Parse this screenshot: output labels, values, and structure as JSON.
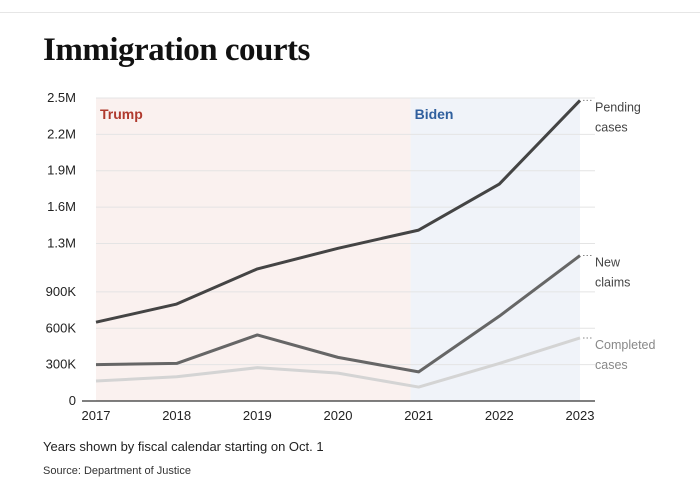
{
  "chart_data": {
    "type": "line",
    "title": "Immigration courts",
    "xlabel": "",
    "ylabel": "",
    "x": [
      2017,
      2018,
      2019,
      2020,
      2021,
      2022,
      2023
    ],
    "ylim": [
      0,
      2500000
    ],
    "yticks": [
      0,
      300000,
      600000,
      900000,
      1300000,
      1600000,
      1900000,
      2200000,
      2500000
    ],
    "ytick_labels": [
      "0",
      "300K",
      "600K",
      "900K",
      "1.3M",
      "1.6M",
      "1.9M",
      "2.2M",
      "2.5M"
    ],
    "xtick_labels": [
      "2017",
      "2018",
      "2019",
      "2020",
      "2021",
      "2022",
      "2023"
    ],
    "grid": true,
    "legend": "direct labels at right",
    "series": [
      {
        "name": "Pending cases",
        "label_lines": [
          "Pending",
          "cases"
        ],
        "color": "#444444",
        "values": [
          650000,
          800000,
          1090000,
          1260000,
          1410000,
          1790000,
          2480000
        ]
      },
      {
        "name": "New claims",
        "label_lines": [
          "New",
          "claims"
        ],
        "color": "#666666",
        "values": [
          300000,
          310000,
          545000,
          360000,
          240000,
          700000,
          1200000
        ]
      },
      {
        "name": "Completed cases",
        "label_lines": [
          "Completed",
          "cases"
        ],
        "color": "#d4d4d4",
        "values": [
          165000,
          200000,
          275000,
          230000,
          115000,
          310000,
          520000
        ]
      }
    ],
    "annotations": [
      {
        "text": "Trump",
        "from": 2017,
        "to": 2020.9,
        "color": "#b03a2e",
        "shade": "#faf1ef"
      },
      {
        "text": "Biden",
        "from": 2020.9,
        "to": 2023,
        "color": "#2f5f9e",
        "shade": "#f0f3f9"
      }
    ]
  },
  "footer": {
    "note": "Years shown by fiscal calendar starting on Oct. 1",
    "source": "Source: Department of Justice"
  }
}
